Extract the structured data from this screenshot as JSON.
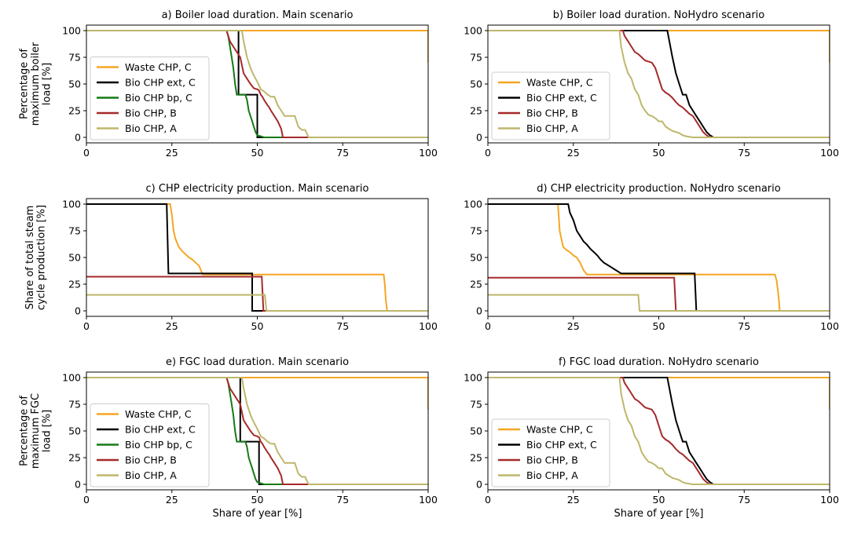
{
  "figure": {
    "xlabel": "Share of year [%]",
    "row_ylabels": [
      [
        "Percentage of",
        "maximum boiler",
        "load [%]"
      ],
      [
        "Share of total steam",
        "cycle production [%]"
      ],
      [
        "Percentage of",
        "maximum  FGC",
        "load [%]"
      ]
    ]
  },
  "colors": {
    "Waste CHP, C": "#f5a623",
    "Bio CHP ext, C": "#000000",
    "Bio CHP bp, C": "#157a15",
    "Bio CHP, B": "#a52a2a",
    "Bio CHP, A": "#bdb76b"
  },
  "chart_data": [
    {
      "type": "line",
      "title": "a) Boiler load duration. Main scenario",
      "xlabel": "",
      "ylabel": "Percentage of maximum boiler load [%]",
      "xlim": [
        0,
        100
      ],
      "ylim": [
        0,
        100
      ],
      "xticks": [
        0,
        25,
        50,
        75,
        100
      ],
      "yticks": [
        0,
        25,
        50,
        75,
        100
      ],
      "legend": "lower-left",
      "series": [
        {
          "name": "Waste CHP, C",
          "x": [
            0,
            99.8,
            100,
            100
          ],
          "y": [
            100,
            100,
            100,
            70
          ]
        },
        {
          "name": "Bio CHP ext, C",
          "x": [
            0,
            44.5,
            44.5,
            50,
            50,
            100
          ],
          "y": [
            100,
            100,
            40,
            40,
            0,
            0
          ]
        },
        {
          "name": "Bio CHP bp, C",
          "x": [
            0,
            41,
            41.5,
            42,
            42.5,
            43,
            43.5,
            44,
            44.5,
            45,
            46.5,
            47,
            47.5,
            48,
            48.5,
            49,
            49.5,
            50,
            52,
            100
          ],
          "y": [
            100,
            100,
            95,
            85,
            75,
            65,
            50,
            40,
            40,
            40,
            40,
            35,
            25,
            20,
            15,
            10,
            5,
            2,
            0,
            0
          ]
        },
        {
          "name": "Bio CHP, B",
          "x": [
            0,
            41,
            41.5,
            42,
            43,
            44,
            45,
            46,
            47,
            48,
            49,
            50,
            50.5,
            51,
            51.5,
            52,
            53,
            53.5,
            54,
            55,
            56,
            57,
            57.5,
            100
          ],
          "y": [
            100,
            100,
            95,
            90,
            85,
            80,
            75,
            60,
            55,
            50,
            46,
            45,
            44,
            40,
            38,
            35,
            30,
            28,
            25,
            20,
            15,
            8,
            0,
            0
          ]
        },
        {
          "name": "Bio CHP, A",
          "x": [
            0,
            45.5,
            46,
            47,
            48,
            49,
            50,
            51,
            52,
            53,
            54,
            55,
            56,
            57,
            58,
            59,
            60,
            61,
            62,
            63,
            64,
            65,
            100
          ],
          "y": [
            100,
            100,
            90,
            75,
            65,
            58,
            52,
            45,
            43,
            40,
            38,
            38,
            30,
            25,
            20,
            20,
            20,
            20,
            10,
            7,
            7,
            0,
            0
          ]
        }
      ]
    },
    {
      "type": "line",
      "title": "b) Boiler load duration. NoHydro scenario",
      "xlabel": "",
      "ylabel": "",
      "xlim": [
        0,
        100
      ],
      "ylim": [
        0,
        100
      ],
      "xticks": [
        0,
        25,
        50,
        75,
        100
      ],
      "yticks": [
        0,
        25,
        50,
        75,
        100
      ],
      "legend": "lower-left",
      "series": [
        {
          "name": "Waste CHP, C",
          "x": [
            0,
            99.8,
            100,
            100
          ],
          "y": [
            100,
            100,
            100,
            70
          ]
        },
        {
          "name": "Bio CHP ext, C",
          "x": [
            0,
            52.5,
            53,
            54,
            55,
            56,
            57,
            58,
            59,
            60,
            61,
            62,
            63,
            64,
            65,
            66,
            100
          ],
          "y": [
            100,
            100,
            92,
            75,
            60,
            50,
            40,
            40,
            30,
            25,
            20,
            15,
            10,
            5,
            2,
            0,
            0
          ]
        },
        {
          "name": "Bio CHP, B",
          "x": [
            0,
            39.5,
            40,
            41,
            42,
            43,
            44,
            45,
            46,
            47,
            48,
            49,
            50,
            51,
            52,
            53,
            54,
            55,
            56,
            57,
            58,
            59,
            60,
            61,
            62,
            63,
            64,
            65,
            100
          ],
          "y": [
            100,
            100,
            95,
            90,
            85,
            80,
            78,
            75,
            72,
            71,
            70,
            65,
            55,
            45,
            42,
            40,
            37,
            33,
            30,
            28,
            25,
            22,
            20,
            15,
            10,
            5,
            2,
            0,
            0
          ]
        },
        {
          "name": "Bio CHP, A",
          "x": [
            0,
            38.5,
            39,
            40,
            41,
            42,
            43,
            44,
            45,
            46,
            47,
            48,
            49,
            50,
            51,
            52,
            53,
            54,
            55,
            56,
            57,
            58,
            60,
            100
          ],
          "y": [
            100,
            100,
            85,
            70,
            60,
            55,
            45,
            40,
            30,
            25,
            21,
            20,
            18,
            15,
            15,
            10,
            8,
            6,
            5,
            4,
            2,
            1,
            0,
            0
          ]
        }
      ]
    },
    {
      "type": "line",
      "title": "c) CHP electricity production. Main scenario",
      "xlabel": "",
      "ylabel": "Share of total steam cycle production [%]",
      "xlim": [
        0,
        100
      ],
      "ylim": [
        0,
        100
      ],
      "xticks": [
        0,
        25,
        50,
        75,
        100
      ],
      "yticks": [
        0,
        25,
        50,
        75,
        100
      ],
      "legend": "none",
      "series": [
        {
          "name": "Waste CHP, C",
          "x": [
            0,
            24.5,
            25,
            25.5,
            26,
            27,
            28,
            29,
            30,
            31,
            32,
            33,
            33.5,
            34,
            87,
            87.3,
            87.6,
            88,
            100
          ],
          "y": [
            100,
            100,
            90,
            75,
            68,
            60,
            56,
            53,
            50,
            48,
            45,
            42,
            38,
            34,
            34,
            25,
            10,
            0,
            0
          ]
        },
        {
          "name": "Bio CHP ext, C",
          "x": [
            0,
            23.5,
            24,
            48.5,
            48.5,
            100
          ],
          "y": [
            100,
            100,
            35,
            35,
            0,
            0
          ]
        },
        {
          "name": "Bio CHP, B",
          "x": [
            0,
            51.3,
            51.8,
            100
          ],
          "y": [
            32,
            32,
            0,
            0
          ]
        },
        {
          "name": "Bio CHP, A",
          "x": [
            0,
            52.2,
            52.7,
            100
          ],
          "y": [
            15,
            15,
            0,
            0
          ]
        }
      ]
    },
    {
      "type": "line",
      "title": "d) CHP electricity production. NoHydro scenario",
      "xlabel": "",
      "ylabel": "",
      "xlim": [
        0,
        100
      ],
      "ylim": [
        0,
        100
      ],
      "xticks": [
        0,
        25,
        50,
        75,
        100
      ],
      "yticks": [
        0,
        25,
        50,
        75,
        100
      ],
      "legend": "none",
      "series": [
        {
          "name": "Waste CHP, C",
          "x": [
            0,
            20.5,
            21,
            22,
            23,
            24,
            25,
            26,
            27,
            28,
            29,
            84,
            84.5,
            85,
            85.4,
            100
          ],
          "y": [
            100,
            100,
            75,
            60,
            57,
            55,
            52,
            50,
            45,
            38,
            34,
            34,
            28,
            15,
            0,
            0
          ]
        },
        {
          "name": "Bio CHP ext, C",
          "x": [
            0,
            23.5,
            24,
            25,
            26,
            27,
            28,
            29,
            30,
            31,
            32,
            33,
            34,
            35,
            36,
            37,
            38,
            39,
            60.5,
            61,
            100
          ],
          "y": [
            100,
            100,
            92,
            85,
            75,
            70,
            65,
            62,
            58,
            55,
            52,
            48,
            45,
            43,
            41,
            39,
            37,
            35,
            35,
            0,
            0
          ]
        },
        {
          "name": "Bio CHP, B",
          "x": [
            0,
            54.5,
            55,
            100
          ],
          "y": [
            31,
            31,
            0,
            0
          ]
        },
        {
          "name": "Bio CHP, A",
          "x": [
            0,
            44,
            44.4,
            100
          ],
          "y": [
            15,
            15,
            0,
            0
          ]
        }
      ]
    },
    {
      "type": "line",
      "title": "e) FGC load duration. Main scenario",
      "xlabel": "Share of year [%]",
      "ylabel": "Percentage of maximum FGC load [%]",
      "xlim": [
        0,
        100
      ],
      "ylim": [
        0,
        100
      ],
      "xticks": [
        0,
        25,
        50,
        75,
        100
      ],
      "yticks": [
        0,
        25,
        50,
        75,
        100
      ],
      "legend": "lower-left",
      "series": [
        {
          "name": "Waste CHP, C",
          "x": [
            0,
            99.8,
            100,
            100
          ],
          "y": [
            100,
            100,
            100,
            70
          ]
        },
        {
          "name": "Bio CHP ext, C",
          "x": [
            0,
            45,
            45,
            50.5,
            50.5,
            100
          ],
          "y": [
            100,
            100,
            40,
            40,
            0,
            0
          ]
        },
        {
          "name": "Bio CHP bp, C",
          "x": [
            0,
            41,
            41.5,
            42,
            42.5,
            43,
            43.5,
            44,
            44.5,
            45,
            46.5,
            47,
            47.5,
            48,
            48.5,
            49,
            49.5,
            50,
            52,
            100
          ],
          "y": [
            100,
            100,
            95,
            85,
            75,
            65,
            50,
            40,
            40,
            40,
            40,
            35,
            25,
            20,
            15,
            10,
            5,
            2,
            0,
            0
          ]
        },
        {
          "name": "Bio CHP, B",
          "x": [
            0,
            41,
            41.5,
            42,
            43,
            44,
            45,
            46,
            47,
            48,
            49,
            50,
            50.5,
            51,
            51.5,
            52,
            53,
            53.5,
            54,
            55,
            56,
            57,
            57.5,
            100
          ],
          "y": [
            100,
            100,
            95,
            90,
            85,
            80,
            75,
            60,
            55,
            50,
            46,
            45,
            44,
            40,
            38,
            35,
            30,
            28,
            25,
            20,
            15,
            8,
            0,
            0
          ]
        },
        {
          "name": "Bio CHP, A",
          "x": [
            0,
            45.5,
            46,
            47,
            48,
            49,
            50,
            51,
            52,
            53,
            54,
            55,
            56,
            57,
            58,
            59,
            60,
            61,
            62,
            63,
            64,
            65,
            100
          ],
          "y": [
            100,
            100,
            90,
            75,
            65,
            58,
            52,
            45,
            43,
            40,
            38,
            38,
            30,
            25,
            20,
            20,
            20,
            20,
            10,
            7,
            7,
            0,
            0
          ]
        }
      ]
    },
    {
      "type": "line",
      "title": "f) FGC load duration. NoHydro scenario",
      "xlabel": "Share of year [%]",
      "ylabel": "",
      "xlim": [
        0,
        100
      ],
      "ylim": [
        0,
        100
      ],
      "xticks": [
        0,
        25,
        50,
        75,
        100
      ],
      "yticks": [
        0,
        25,
        50,
        75,
        100
      ],
      "legend": "lower-left",
      "series": [
        {
          "name": "Waste CHP, C",
          "x": [
            0,
            99.8,
            100,
            100
          ],
          "y": [
            100,
            100,
            100,
            70
          ]
        },
        {
          "name": "Bio CHP ext, C",
          "x": [
            0,
            52.5,
            53,
            54,
            55,
            56,
            57,
            58,
            59,
            60,
            61,
            62,
            63,
            64,
            65,
            66,
            100
          ],
          "y": [
            100,
            100,
            92,
            75,
            60,
            50,
            40,
            40,
            30,
            25,
            20,
            15,
            10,
            5,
            2,
            0,
            0
          ]
        },
        {
          "name": "Bio CHP, B",
          "x": [
            0,
            39.5,
            40,
            41,
            42,
            43,
            44,
            45,
            46,
            47,
            48,
            49,
            50,
            51,
            52,
            53,
            54,
            55,
            56,
            57,
            58,
            59,
            60,
            61,
            62,
            63,
            64,
            65,
            100
          ],
          "y": [
            100,
            100,
            95,
            90,
            85,
            80,
            78,
            75,
            72,
            71,
            70,
            65,
            55,
            45,
            42,
            40,
            37,
            33,
            30,
            28,
            25,
            22,
            20,
            15,
            10,
            5,
            2,
            0,
            0
          ]
        },
        {
          "name": "Bio CHP, A",
          "x": [
            0,
            38.5,
            39,
            40,
            41,
            42,
            43,
            44,
            45,
            46,
            47,
            48,
            49,
            50,
            51,
            52,
            53,
            54,
            55,
            56,
            57,
            58,
            60,
            100
          ],
          "y": [
            100,
            100,
            85,
            70,
            60,
            55,
            45,
            40,
            30,
            25,
            21,
            20,
            18,
            15,
            15,
            10,
            8,
            6,
            5,
            4,
            2,
            1,
            0,
            0
          ]
        }
      ]
    }
  ]
}
